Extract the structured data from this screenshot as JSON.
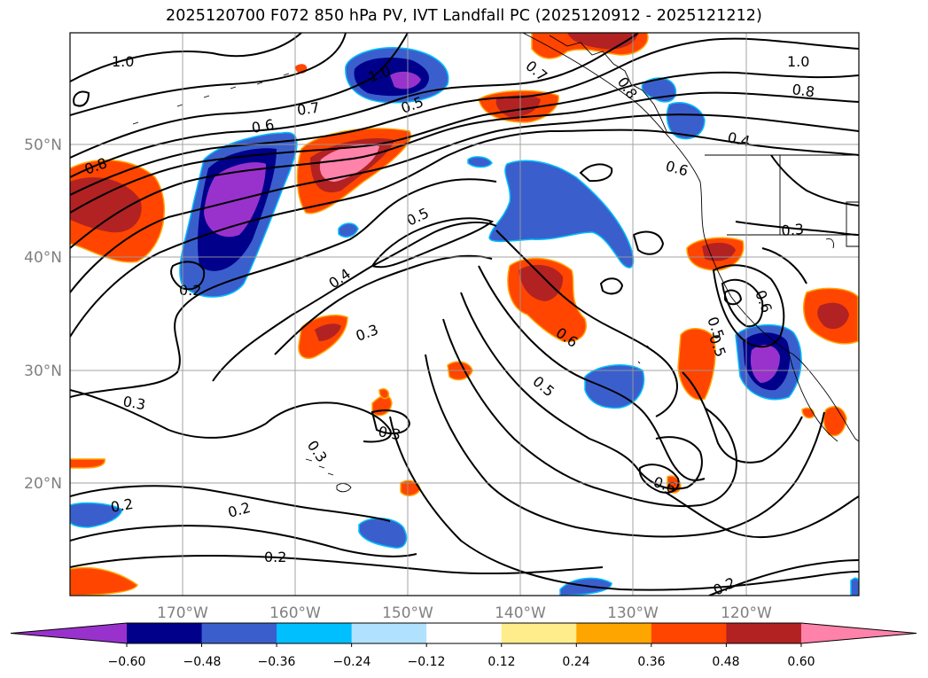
{
  "title": "2025120700 F072 850 hPa PV, IVT Landfall PC (2025120912 - 2025121212)",
  "map": {
    "lon_range": [
      -180,
      -110
    ],
    "lat_range": [
      10,
      60
    ],
    "lat_labels": [
      "50°N",
      "40°N",
      "30°N",
      "20°N"
    ],
    "lon_labels": [
      "170°W",
      "160°W",
      "150°W",
      "140°W",
      "130°W",
      "120°W"
    ],
    "gridlines": true
  },
  "colorbar": {
    "ticks": [
      "−0.60",
      "−0.48",
      "−0.36",
      "−0.24",
      "−0.12",
      "0.12",
      "0.24",
      "0.36",
      "0.48",
      "0.60"
    ],
    "colors": [
      "#9932cc",
      "#00008b",
      "#3a5fcd",
      "#00bfff",
      "#b0e2ff",
      "#ffffff",
      "#ffec8b",
      "#ffa500",
      "#ff4500",
      "#b22222",
      "#ff82ab"
    ],
    "extend": "both"
  },
  "contour_labels": [
    "1.0",
    "1.0",
    "1.0",
    "0.8",
    "0.8",
    "0.8",
    "0.7",
    "0.7",
    "0.6",
    "0.6",
    "0.6",
    "0.6",
    "0.5",
    "0.5",
    "0.5",
    "0.5",
    "0.4",
    "0.4",
    "0.3",
    "0.3",
    "0.3",
    "0.3",
    "0.3",
    "0.2",
    "0.2",
    "0.2",
    "0.2",
    "0.2",
    "0.6",
    "0.5"
  ]
}
